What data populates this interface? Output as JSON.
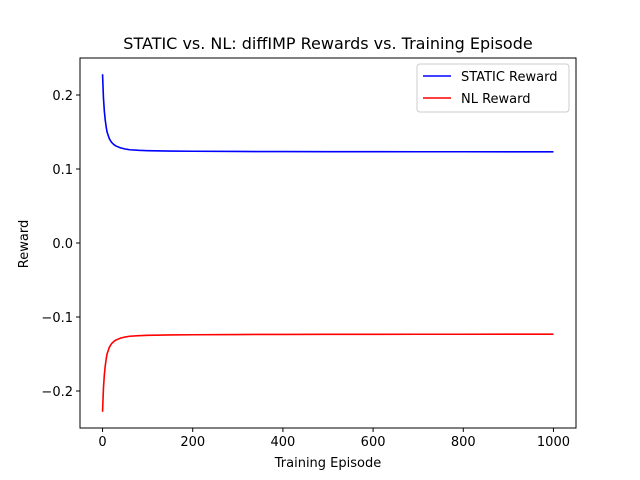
{
  "chart_data": {
    "type": "line",
    "title": "STATIC vs. NL: diffIMP Rewards vs. Training Episode",
    "xlabel": "Training Episode",
    "ylabel": "Reward",
    "xlim": [
      -50,
      1050
    ],
    "ylim": [
      -0.25,
      0.25
    ],
    "xticks": [
      0,
      200,
      400,
      600,
      800,
      1000
    ],
    "yticks": [
      -0.2,
      -0.1,
      0.0,
      0.1,
      0.2
    ],
    "xtick_labels": [
      "0",
      "200",
      "400",
      "600",
      "800",
      "1000"
    ],
    "ytick_labels": [
      "−0.2",
      "−0.1",
      "0.0",
      "0.1",
      "0.2"
    ],
    "grid": false,
    "legend_position": "top-right",
    "series": [
      {
        "name": "STATIC Reward",
        "color": "#0000ff",
        "x": [
          0,
          2,
          4,
          6,
          8,
          10,
          15,
          20,
          25,
          30,
          40,
          50,
          60,
          80,
          100,
          150,
          200,
          300,
          400,
          500,
          600,
          700,
          800,
          900,
          1000
        ],
        "y": [
          0.228,
          0.196,
          0.178,
          0.166,
          0.157,
          0.15,
          0.141,
          0.136,
          0.133,
          0.131,
          0.1285,
          0.127,
          0.126,
          0.1252,
          0.1248,
          0.1243,
          0.124,
          0.1237,
          0.1235,
          0.1234,
          0.1234,
          0.1233,
          0.1233,
          0.1232,
          0.1232
        ]
      },
      {
        "name": "NL Reward",
        "color": "#ff0000",
        "x": [
          0,
          2,
          4,
          6,
          8,
          10,
          15,
          20,
          25,
          30,
          40,
          50,
          60,
          80,
          100,
          150,
          200,
          300,
          400,
          500,
          600,
          700,
          800,
          900,
          1000
        ],
        "y": [
          -0.228,
          -0.196,
          -0.178,
          -0.166,
          -0.157,
          -0.15,
          -0.141,
          -0.136,
          -0.133,
          -0.131,
          -0.1285,
          -0.127,
          -0.126,
          -0.1252,
          -0.1248,
          -0.1243,
          -0.124,
          -0.1237,
          -0.1235,
          -0.1234,
          -0.1234,
          -0.1233,
          -0.1233,
          -0.1232,
          -0.1232
        ]
      }
    ]
  }
}
